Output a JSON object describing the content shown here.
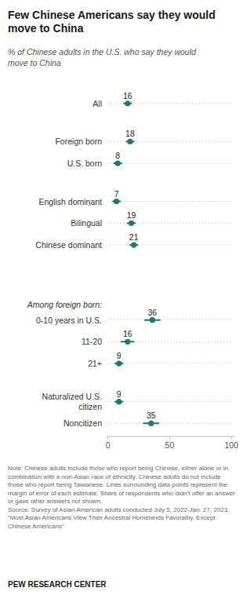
{
  "chart_data": {
    "type": "dot",
    "orientation": "horizontal",
    "title": "Few Chinese Americans say they would\nmove to China",
    "subtitle": "% of Chinese adults in the U.S. who say they would\nmove to China",
    "categories": [
      "All",
      "Foreign born",
      "U.S. born",
      "English dominant",
      "Bilingual",
      "Chinese dominant",
      "0-10 years in U.S.",
      "11-20",
      "21+",
      "Naturalized U.S.\ncitizen",
      "Noncitizen"
    ],
    "values": [
      16,
      18,
      8,
      7,
      19,
      21,
      36,
      16,
      9,
      9,
      35
    ],
    "errors": [
      3,
      3,
      3,
      3,
      3,
      3,
      6,
      5,
      3,
      3,
      6
    ],
    "color": "#1a7a6e",
    "xlim": [
      -1,
      103
    ],
    "xticks": [
      0,
      50,
      100
    ],
    "grid": false,
    "data_labels": true,
    "annotations": [
      {
        "text": "Among foreign born:"
      }
    ],
    "note": "Note: Chinese adults include those who report being Chinese, either alone or in combination with a non-Asian race of ethnicity. Chinese adults do not include those who report being Taiwanese. Lines surrounding data points represent the margin of error of each estimate. Share of respondents who didn’t offer an answer or gave other answers not shown.\nSource: Survey of Asian American adults conducted July 5, 2022-Jan. 27, 2023.\n“Most Asian Americans View Their Ancestral Homelands Favorably, Except Chinese Americans”",
    "footer": "PEW RESEARCH CENTER"
  }
}
